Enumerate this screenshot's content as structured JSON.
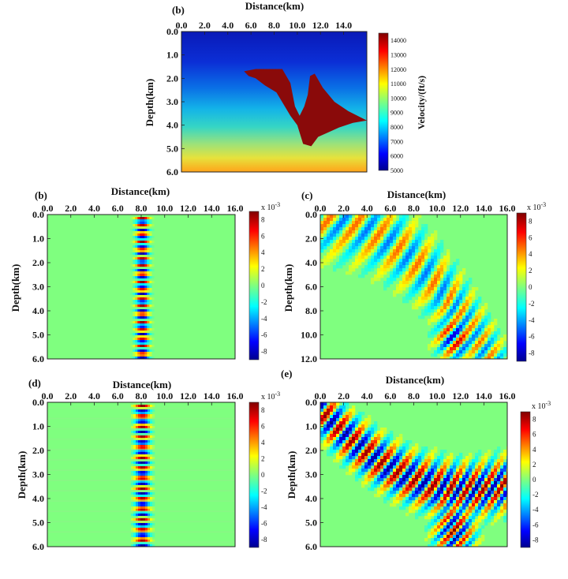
{
  "chart_data": [
    {
      "id": "top",
      "type": "heatmap",
      "panel_label": "(b)",
      "xlabel": "Distance(km)",
      "ylabel": "Depth(km)",
      "x_ticks": [
        "0.0",
        "2.0",
        "4.0",
        "6.0",
        "8.0",
        "10.0",
        "12.0",
        "14.0"
      ],
      "y_ticks": [
        "0.0",
        "1.0",
        "2.0",
        "3.0",
        "4.0",
        "5.0",
        "6.0"
      ],
      "xlim": [
        0,
        16
      ],
      "ylim": [
        0,
        6
      ],
      "colorbar": {
        "label": "Velocity/(ft/s)",
        "ticks": [
          "14000",
          "13000",
          "12000",
          "11000",
          "10000",
          "9000",
          "8000",
          "7000",
          "6000",
          "5000"
        ],
        "range": [
          5000,
          14500
        ]
      },
      "velocity_gradient": {
        "depth": [
          0,
          2,
          3,
          4,
          5,
          6
        ],
        "velocity": [
          5000,
          6500,
          8000,
          9500,
          10500,
          12000
        ]
      },
      "salt_body": {
        "velocity": 14500,
        "outline": [
          [
            5.4,
            1.7
          ],
          [
            6.4,
            1.6
          ],
          [
            8.7,
            1.6
          ],
          [
            9.4,
            2.2
          ],
          [
            9.8,
            3.2
          ],
          [
            10.2,
            3.6
          ],
          [
            10.6,
            3.2
          ],
          [
            10.9,
            2.7
          ],
          [
            11.1,
            1.9
          ],
          [
            11.5,
            1.8
          ],
          [
            12.2,
            2.4
          ],
          [
            13.2,
            3.0
          ],
          [
            14.4,
            3.4
          ],
          [
            16.0,
            3.8
          ],
          [
            14.8,
            3.9
          ],
          [
            13.6,
            4.1
          ],
          [
            12.7,
            4.3
          ],
          [
            11.8,
            4.5
          ],
          [
            11.2,
            4.9
          ],
          [
            10.5,
            4.8
          ],
          [
            10.0,
            4.0
          ],
          [
            9.4,
            3.6
          ],
          [
            8.8,
            3.1
          ],
          [
            8.2,
            2.6
          ],
          [
            7.2,
            2.3
          ],
          [
            6.4,
            2.0
          ],
          [
            5.8,
            1.9
          ]
        ]
      }
    },
    {
      "id": "b",
      "type": "heatmap",
      "panel_label": "(b)",
      "xlabel": "Distance(km)",
      "ylabel": "Depth(km)",
      "x_ticks": [
        "0.0",
        "2.0",
        "4.0",
        "6.0",
        "8.0",
        "10.0",
        "12.0",
        "14.0",
        "16.0"
      ],
      "y_ticks": [
        "0.0",
        "1.0",
        "2.0",
        "3.0",
        "4.0",
        "5.0",
        "6.0"
      ],
      "xlim": [
        0,
        16
      ],
      "ylim": [
        0,
        6
      ],
      "wavefield": {
        "pattern": "vertical",
        "center_x": 8.0,
        "half_width": 0.7,
        "bands": 18
      },
      "colorbar": {
        "exponent": "x 10^-3",
        "ticks": [
          "8",
          "6",
          "4",
          "2",
          "0",
          "-2",
          "-4",
          "-6",
          "-8"
        ],
        "range": [
          -9,
          9
        ]
      }
    },
    {
      "id": "c",
      "type": "heatmap",
      "panel_label": "(c)",
      "xlabel": "Distance(km)",
      "ylabel": "Depth(km)",
      "x_ticks": [
        "0.0",
        "2.0",
        "4.0",
        "6.0",
        "8.0",
        "10.0",
        "12.0",
        "14.0",
        "16.0"
      ],
      "y_ticks": [
        "0.0",
        "2.0",
        "4.0",
        "6.0",
        "8.0",
        "10.0",
        "12.0"
      ],
      "xlim": [
        0,
        16
      ],
      "ylim": [
        0,
        12
      ],
      "wavefield": {
        "pattern": "fan",
        "apex_x": 10.0,
        "apex_y": 7.5,
        "amplitude": "weak"
      },
      "colorbar": {
        "exponent": "x 10^-3",
        "ticks": [
          "8",
          "6",
          "4",
          "2",
          "0",
          "-2",
          "-4",
          "-6",
          "-8"
        ],
        "range": [
          -9,
          9
        ]
      }
    },
    {
      "id": "d",
      "type": "heatmap",
      "panel_label": "(d)",
      "xlabel": "Distance(km)",
      "ylabel": "Depth(km)",
      "x_ticks": [
        "0.0",
        "2.0",
        "4.0",
        "6.0",
        "8.0",
        "10.0",
        "12.0",
        "14.0",
        "16.0"
      ],
      "y_ticks": [
        "0.0",
        "1.0",
        "2.0",
        "3.0",
        "4.0",
        "5.0",
        "6.0"
      ],
      "xlim": [
        0,
        16
      ],
      "ylim": [
        0,
        6
      ],
      "wavefield": {
        "pattern": "vertical",
        "center_x": 8.0,
        "half_width": 0.8,
        "bands": 14
      },
      "colorbar": {
        "exponent": "x 10^-3",
        "ticks": [
          "8",
          "6",
          "4",
          "2",
          "0",
          "-2",
          "-4",
          "-6",
          "-8"
        ],
        "range": [
          -9,
          9
        ]
      }
    },
    {
      "id": "e",
      "type": "heatmap",
      "panel_label": "(e)",
      "xlabel": "Distance(km)",
      "ylabel": "Depth(km)",
      "x_ticks": [
        "0.0",
        "2.0",
        "4.0",
        "6.0",
        "8.0",
        "10.0",
        "12.0",
        "14.0",
        "16.0"
      ],
      "y_ticks": [
        "0.0",
        "1.0",
        "2.0",
        "3.0",
        "4.0",
        "5.0",
        "6.0"
      ],
      "xlim": [
        0,
        16
      ],
      "ylim": [
        0,
        6
      ],
      "wavefield": {
        "pattern": "fan",
        "apex_x": 10.0,
        "apex_y": 4.0,
        "amplitude": "strong"
      },
      "colorbar": {
        "exponent": "x 10^-3",
        "ticks": [
          "8",
          "6",
          "4",
          "2",
          "0",
          "-2",
          "-4",
          "-6",
          "-8"
        ],
        "range": [
          -9,
          9
        ]
      }
    }
  ]
}
